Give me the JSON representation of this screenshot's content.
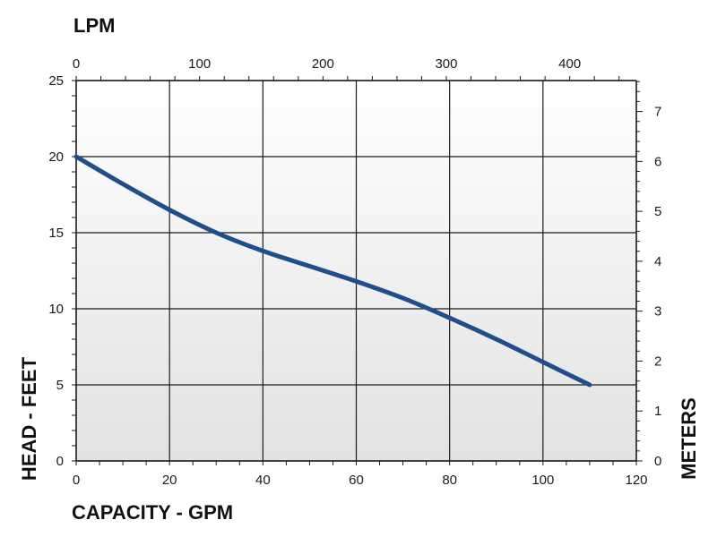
{
  "chart_data": {
    "type": "line",
    "title": "",
    "xlabel": "CAPACITY - GPM",
    "ylabel": "HEAD - FEET",
    "x2label": "LPM",
    "y2label": "METERS",
    "xlim": [
      0,
      120
    ],
    "ylim": [
      0,
      25
    ],
    "x2lim": [
      0,
      454
    ],
    "y2lim": [
      0,
      7.62
    ],
    "x_ticks": [
      "0",
      "20",
      "40",
      "60",
      "80",
      "100",
      "120"
    ],
    "y_ticks": [
      "0",
      "5",
      "10",
      "15",
      "20",
      "25"
    ],
    "x2_ticks": [
      "0",
      "100",
      "200",
      "300",
      "400"
    ],
    "y2_ticks": [
      "0",
      "1",
      "2",
      "3",
      "4",
      "5",
      "6",
      "7"
    ],
    "grid": true,
    "series": [
      {
        "x": [
          0,
          10,
          20,
          30,
          40,
          50,
          60,
          70,
          80,
          90,
          100,
          110
        ],
        "y": [
          20,
          18.2,
          16.5,
          15.0,
          13.8,
          12.8,
          11.8,
          10.7,
          9.4,
          8.0,
          6.5,
          5.0
        ]
      }
    ],
    "colors": {
      "line": "#1f4e8c",
      "grid": "#1a1a1a",
      "plot_top": "#ffffff",
      "plot_bottom": "#e2e2e2"
    }
  }
}
